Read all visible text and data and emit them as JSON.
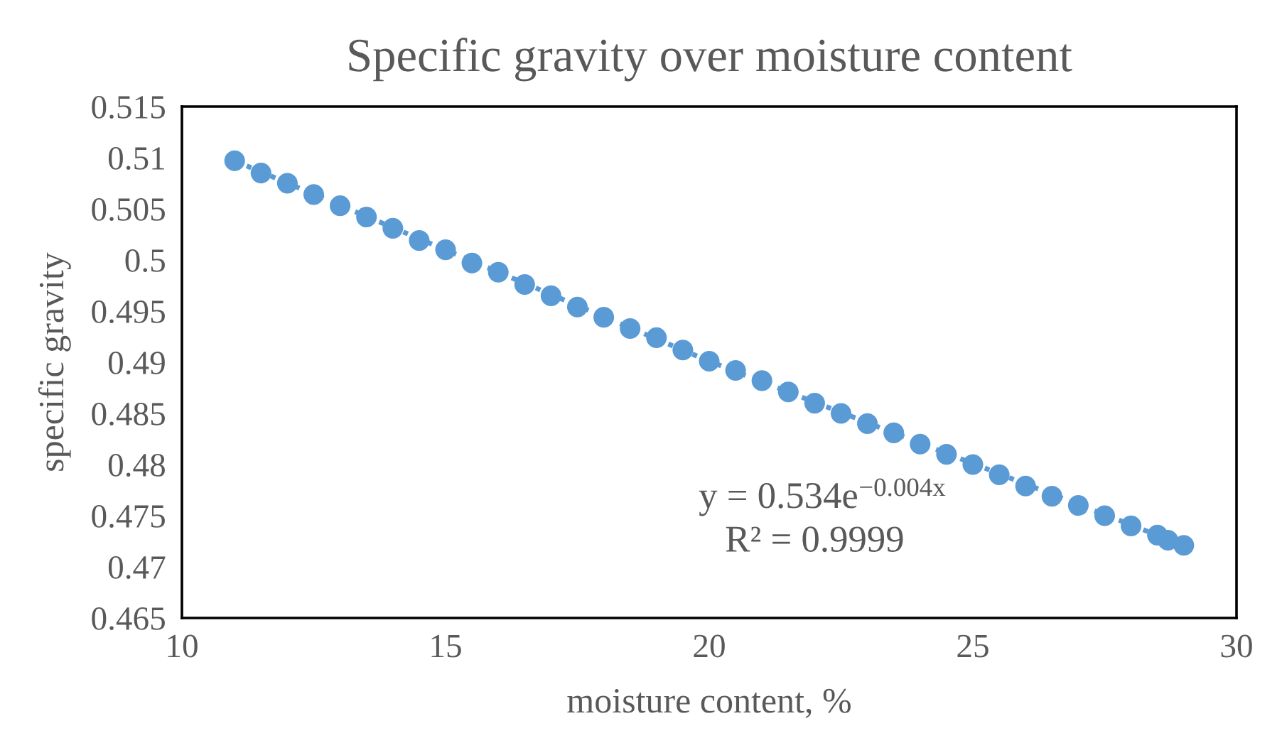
{
  "chart_data": {
    "type": "scatter",
    "title": "Specific gravity over moisture content",
    "xlabel": "moisture content, %",
    "ylabel": "specific gravity",
    "xlim": [
      10,
      30
    ],
    "xticks": [
      10,
      15,
      20,
      25,
      30
    ],
    "ylim": [
      0.465,
      0.515
    ],
    "yticks": [
      0.465,
      0.47,
      0.475,
      0.48,
      0.485,
      0.49,
      0.495,
      0.5,
      0.505,
      0.51,
      0.515
    ],
    "grid": false,
    "legend": false,
    "series": [
      {
        "color": "#5b9bd5",
        "marker": "circle",
        "x": [
          11,
          11.5,
          12,
          12.5,
          13,
          13.5,
          14,
          14.5,
          15,
          15.5,
          16,
          16.5,
          17,
          17.5,
          18,
          18.5,
          19,
          19.5,
          20,
          20.5,
          21,
          21.5,
          22,
          22.5,
          23,
          23.5,
          24,
          24.5,
          25,
          25.5,
          26,
          26.5,
          27,
          27.5,
          28,
          28.5,
          28.7,
          29
        ],
        "values": [
          0.5097,
          0.5085,
          0.5075,
          0.5064,
          0.5053,
          0.5042,
          0.5031,
          0.5019,
          0.501,
          0.4997,
          0.4988,
          0.4976,
          0.4965,
          0.4954,
          0.4944,
          0.4933,
          0.4924,
          0.4912,
          0.4901,
          0.4892,
          0.4882,
          0.4871,
          0.486,
          0.485,
          0.484,
          0.4831,
          0.482,
          0.481,
          0.48,
          0.479,
          0.4779,
          0.4769,
          0.476,
          0.475,
          0.474,
          0.4731,
          0.4726,
          0.4721
        ]
      },
      {
        "type": "line",
        "color": "#5b9bd5",
        "line_style": "dotted",
        "marker": "none",
        "x": [
          11,
          20,
          29
        ],
        "values": [
          0.5097,
          0.4901,
          0.4721
        ]
      }
    ],
    "annotations": [
      "y = 0.534e$^{−0.004x}$",
      "R² = 0.9999"
    ]
  }
}
